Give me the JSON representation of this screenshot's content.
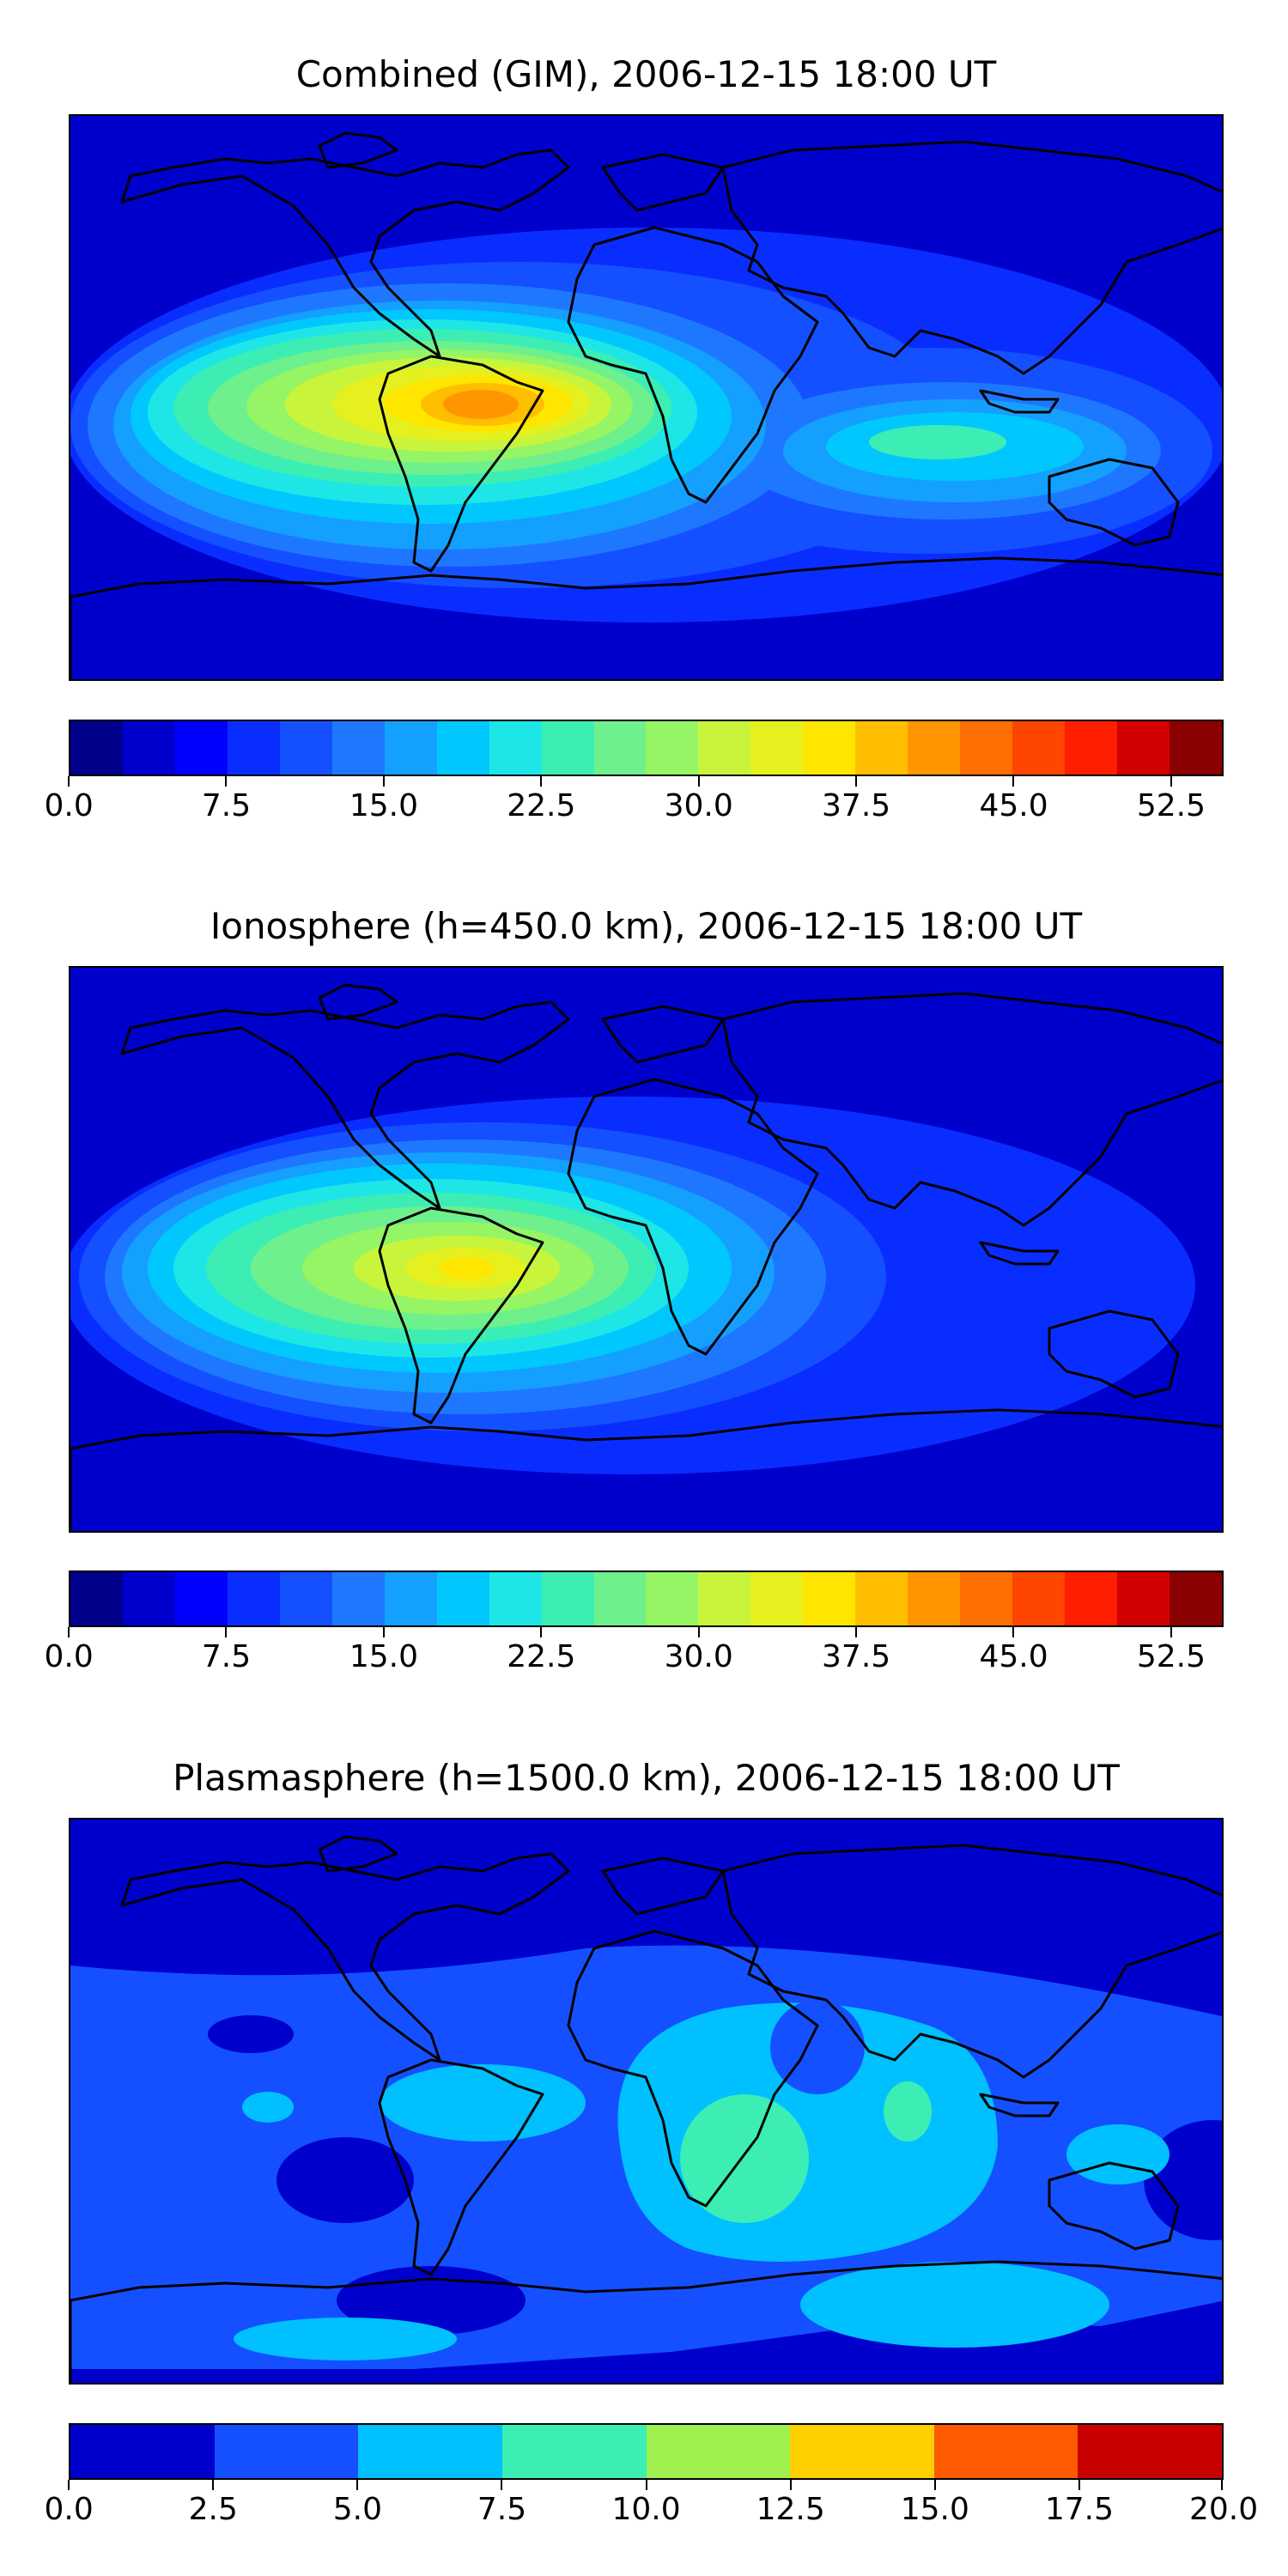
{
  "panels": [
    {
      "title": "Combined (GIM), 2006-12-15 18:00 UT",
      "colorbar_levels": [
        0.0,
        2.5,
        5.0,
        7.5,
        10.0,
        12.5,
        15.0,
        17.5,
        20.0,
        22.5,
        25.0,
        27.5,
        30.0,
        32.5,
        35.0,
        37.5,
        40.0,
        42.5,
        45.0,
        47.5,
        50.0,
        52.5,
        55.0
      ],
      "tick_labels": [
        "0.0",
        "7.5",
        "15.0",
        "22.5",
        "30.0",
        "37.5",
        "45.0",
        "52.5"
      ],
      "colors": [
        "#00008b",
        "#0000cd",
        "#0000ff",
        "#0a2dff",
        "#1450ff",
        "#1e78ff",
        "#14a0ff",
        "#00c8ff",
        "#1ee6e6",
        "#3ceeb4",
        "#6ef08c",
        "#96f564",
        "#c8f53c",
        "#e6f01e",
        "#ffe600",
        "#ffbe00",
        "#ff9600",
        "#ff6e00",
        "#ff4600",
        "#ff1e00",
        "#d20000",
        "#8b0000"
      ]
    },
    {
      "title": "Ionosphere  (h=450.0 km), 2006-12-15 18:00 UT",
      "colorbar_levels": [
        0.0,
        2.5,
        5.0,
        7.5,
        10.0,
        12.5,
        15.0,
        17.5,
        20.0,
        22.5,
        25.0,
        27.5,
        30.0,
        32.5,
        35.0,
        37.5,
        40.0,
        42.5,
        45.0,
        47.5,
        50.0,
        52.5,
        55.0
      ],
      "tick_labels": [
        "0.0",
        "7.5",
        "15.0",
        "22.5",
        "30.0",
        "37.5",
        "45.0",
        "52.5"
      ],
      "colors": [
        "#00008b",
        "#0000cd",
        "#0000ff",
        "#0a2dff",
        "#1450ff",
        "#1e78ff",
        "#14a0ff",
        "#00c8ff",
        "#1ee6e6",
        "#3ceeb4",
        "#6ef08c",
        "#96f564",
        "#c8f53c",
        "#e6f01e",
        "#ffe600",
        "#ffbe00",
        "#ff9600",
        "#ff6e00",
        "#ff4600",
        "#ff1e00",
        "#d20000",
        "#8b0000"
      ]
    },
    {
      "title": "Plasmasphere (h=1500.0 km), 2006-12-15 18:00 UT",
      "colorbar_levels": [
        0.0,
        2.5,
        5.0,
        7.5,
        10.0,
        12.5,
        15.0,
        17.5,
        20.0
      ],
      "tick_labels": [
        "0.0",
        "2.5",
        "5.0",
        "7.5",
        "10.0",
        "12.5",
        "15.0",
        "17.5",
        "20.0"
      ],
      "colors": [
        "#0000cd",
        "#1450ff",
        "#00c0ff",
        "#3ceeb4",
        "#a0f050",
        "#ffd000",
        "#ff5a00",
        "#c80000"
      ]
    }
  ]
}
